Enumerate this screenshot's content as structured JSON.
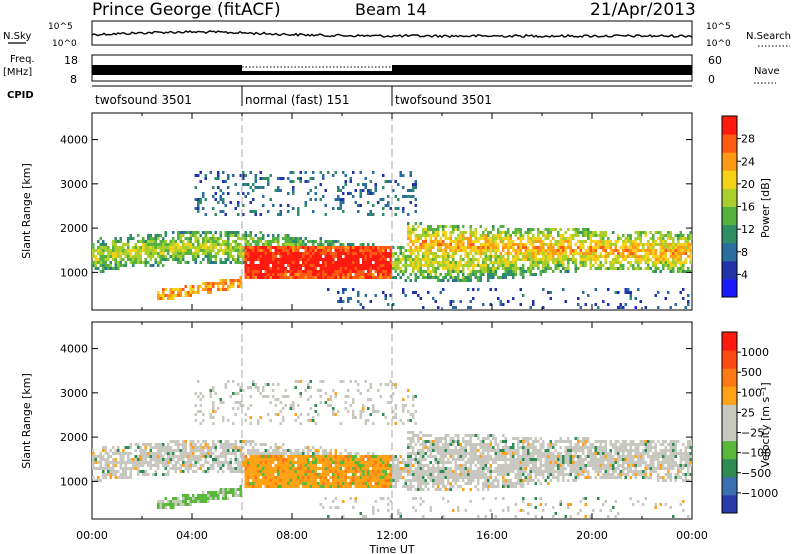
{
  "header": {
    "station": "Prince George (fitACF)",
    "beam": "Beam 14",
    "date": "21/Apr/2013"
  },
  "labels": {
    "nsky": "N.Sky",
    "nsearch": "N.Search",
    "freq": "Freq.",
    "freq_unit": "[MHz]",
    "nave": "Nave",
    "cpid": "CPID",
    "exp10": "10^5",
    "exp0": "10^0",
    "freq_ticks": [
      "18",
      "8"
    ],
    "nave_ticks": [
      "60",
      "0"
    ],
    "xlabel": "Time UT",
    "ylabel": "Slant Range [km]",
    "power_label": "Power [dB]",
    "velocity_label": "Velocity [m s⁻¹]"
  },
  "cpid_segments": [
    {
      "label": "twofsound 3501",
      "start": 0,
      "end": 6
    },
    {
      "label": "normal (fast) 151",
      "start": 6,
      "end": 12
    },
    {
      "label": "twofsound 3501",
      "start": 12,
      "end": 24
    }
  ],
  "chart_data": [
    {
      "type": "heatmap",
      "name": "power",
      "x_range": [
        0,
        24
      ],
      "y_range": [
        150,
        4600
      ],
      "x_ticks": [
        "00:00",
        "04:00",
        "08:00",
        "12:00",
        "16:00",
        "20:00",
        "00:00"
      ],
      "y_ticks": [
        1000,
        2000,
        3000,
        4000
      ],
      "colorbar": {
        "label": "Power [dB]",
        "ticks": [
          4,
          8,
          12,
          16,
          20,
          24,
          28
        ],
        "colors": [
          "#1a1aff",
          "#2233aa",
          "#2a6e9e",
          "#2f8e66",
          "#55b240",
          "#a8cf2c",
          "#f4d21a",
          "#ff9a14",
          "#ff5a14",
          "#ff1a10"
        ]
      }
    },
    {
      "type": "heatmap",
      "name": "velocity",
      "x_range": [
        0,
        24
      ],
      "y_range": [
        150,
        4600
      ],
      "x_ticks": [
        "00:00",
        "04:00",
        "08:00",
        "12:00",
        "16:00",
        "20:00",
        "00:00"
      ],
      "y_ticks": [
        1000,
        2000,
        3000,
        4000
      ],
      "colorbar": {
        "label": "Velocity [m s⁻¹]",
        "ticks": [
          "1000",
          "500",
          "100",
          "25",
          "−25",
          "−100",
          "−500",
          "−1000"
        ],
        "colors": [
          "#2a3caa",
          "#3a6fb0",
          "#2e8c52",
          "#58b83a",
          "#c8c8c0",
          "#c8c8c0",
          "#ffa216",
          "#ff7a14",
          "#ff4a12",
          "#ff1a10"
        ]
      }
    }
  ]
}
